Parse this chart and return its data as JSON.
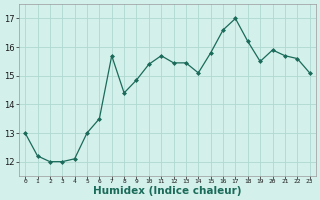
{
  "x": [
    0,
    1,
    2,
    3,
    4,
    5,
    6,
    7,
    8,
    9,
    10,
    11,
    12,
    13,
    14,
    15,
    16,
    17,
    18,
    19,
    20,
    21,
    22,
    23
  ],
  "y": [
    13.0,
    12.2,
    12.0,
    12.0,
    12.1,
    13.0,
    13.5,
    15.7,
    14.4,
    14.85,
    15.4,
    15.7,
    15.45,
    15.45,
    15.1,
    15.8,
    16.6,
    17.0,
    16.2,
    15.5,
    15.9,
    15.7,
    15.6,
    15.1
  ],
  "line_color": "#1a6b5a",
  "marker": "D",
  "marker_size": 2.0,
  "bg_color": "#d4f0eb",
  "grid_color": "#aed8d0",
  "xlabel": "Humidex (Indice chaleur)",
  "xlabel_fontsize": 7.5,
  "ylabel_ticks": [
    12,
    13,
    14,
    15,
    16,
    17
  ],
  "xlim": [
    -0.5,
    23.5
  ],
  "ylim": [
    11.5,
    17.5
  ],
  "xtick_labels": [
    "0",
    "1",
    "2",
    "3",
    "4",
    "5",
    "6",
    "7",
    "8",
    "9",
    "10",
    "11",
    "12",
    "13",
    "14",
    "15",
    "16",
    "17",
    "18",
    "19",
    "20",
    "21",
    "22",
    "23"
  ]
}
